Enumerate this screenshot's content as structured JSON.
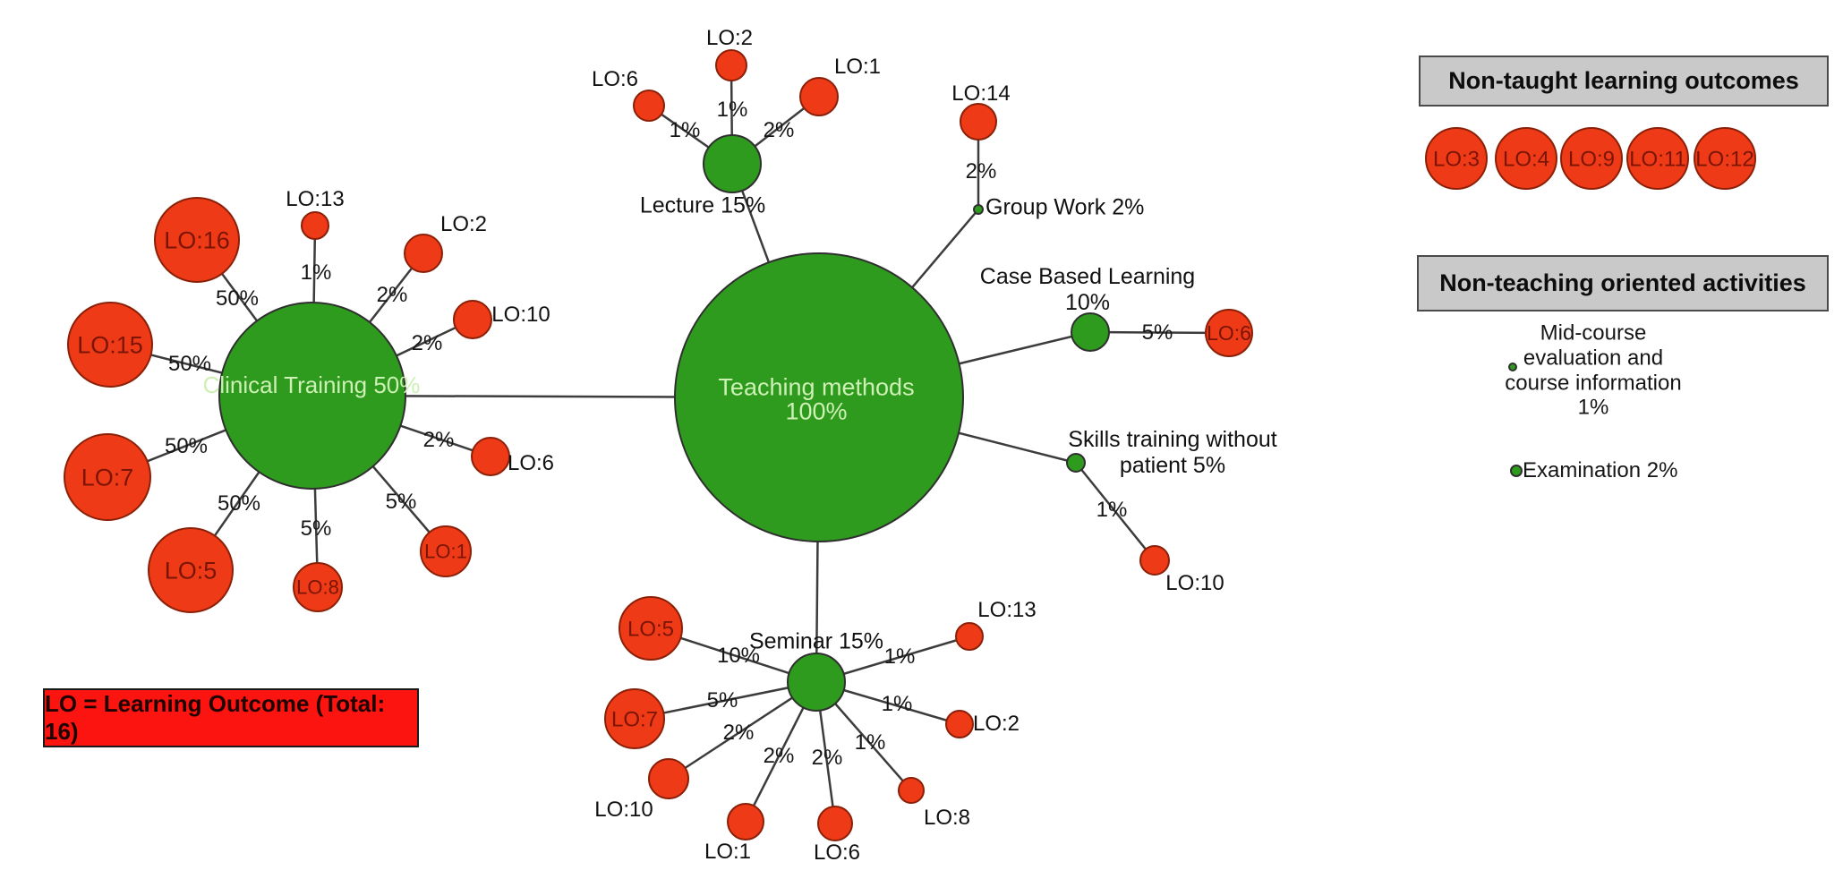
{
  "legend_box": {
    "label": "LO = Learning Outcome (Total: 16)"
  },
  "panels": {
    "non_taught": {
      "title": "Non-taught learning outcomes",
      "items": [
        "LO:3",
        "LO:4",
        "LO:9",
        "LO:11",
        "LO:12"
      ]
    },
    "non_teaching": {
      "title": "Non-teaching oriented activities",
      "items": [
        {
          "label": "Mid-course\nevaluation and\ncourse information\n1%"
        },
        {
          "label": "Examination 2%"
        }
      ]
    }
  },
  "graph": {
    "center": {
      "label": "Teaching methods",
      "pct": "100%"
    },
    "methods": [
      {
        "id": "clinical",
        "label": "Clinical Training 50%",
        "satellites": [
          {
            "lo": "LO:16",
            "pct": "50%"
          },
          {
            "lo": "LO:13",
            "pct": "1%"
          },
          {
            "lo": "LO:2",
            "pct": "2%"
          },
          {
            "lo": "LO:10",
            "pct": "2%"
          },
          {
            "lo": "LO:6",
            "pct": "2%"
          },
          {
            "lo": "LO:1",
            "pct": "5%"
          },
          {
            "lo": "LO:8",
            "pct": "5%"
          },
          {
            "lo": "LO:5",
            "pct": "50%"
          },
          {
            "lo": "LO:7",
            "pct": "50%"
          },
          {
            "lo": "LO:15",
            "pct": "50%"
          }
        ]
      },
      {
        "id": "lecture",
        "label": "Lecture 15%",
        "satellites": [
          {
            "lo": "LO:6",
            "pct": "1%"
          },
          {
            "lo": "LO:2",
            "pct": "1%"
          },
          {
            "lo": "LO:1",
            "pct": "2%"
          }
        ]
      },
      {
        "id": "groupwork",
        "label": "Group Work 2%",
        "satellites": [
          {
            "lo": "LO:14",
            "pct": "2%"
          }
        ]
      },
      {
        "id": "casebased",
        "label": "Case Based Learning\n10%",
        "satellites": [
          {
            "lo": "LO:6",
            "pct": "5%"
          }
        ]
      },
      {
        "id": "skills",
        "label": "Skills training without\npatient 5%",
        "satellites": [
          {
            "lo": "LO:10",
            "pct": "1%"
          }
        ]
      },
      {
        "id": "seminar",
        "label": "Seminar 15%",
        "satellites": [
          {
            "lo": "LO:5",
            "pct": "10%"
          },
          {
            "lo": "LO:7",
            "pct": "5%"
          },
          {
            "lo": "LO:10",
            "pct": "2%"
          },
          {
            "lo": "LO:1",
            "pct": "2%"
          },
          {
            "lo": "LO:6",
            "pct": "2%"
          },
          {
            "lo": "LO:8",
            "pct": "1%"
          },
          {
            "lo": "LO:2",
            "pct": "1%"
          },
          {
            "lo": "LO:13",
            "pct": "1%"
          }
        ]
      }
    ]
  },
  "colors": {
    "method_green": "#2e9a1e",
    "green_stroke": "#2f2f2f",
    "lo_red": "#ee3a17",
    "lo_red_stroke": "#8b2008",
    "lo_text_dark": "#7a1505",
    "method_text_light": "#cdf0b4",
    "line": "#3c3c3c",
    "header_gray": "#c9c9c9",
    "legend_red": "#fb1410"
  }
}
